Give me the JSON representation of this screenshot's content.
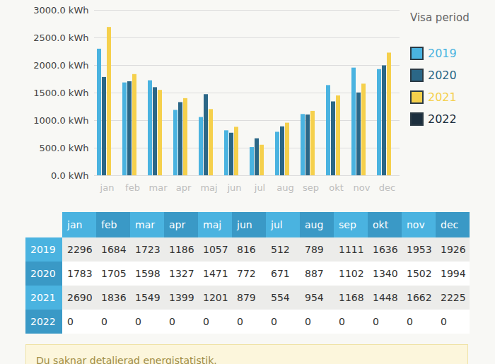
{
  "chart_data": {
    "type": "bar",
    "categories": [
      "jan",
      "feb",
      "mar",
      "apr",
      "maj",
      "jun",
      "jul",
      "aug",
      "sep",
      "okt",
      "nov",
      "dec"
    ],
    "series": [
      {
        "name": "2019",
        "color": "#4ab3e0",
        "values": [
          2296,
          1684,
          1723,
          1186,
          1057,
          816,
          512,
          789,
          1111,
          1636,
          1953,
          1926
        ]
      },
      {
        "name": "2020",
        "color": "#2b6787",
        "values": [
          1783,
          1705,
          1598,
          1327,
          1471,
          772,
          671,
          887,
          1102,
          1340,
          1502,
          1994
        ]
      },
      {
        "name": "2021",
        "color": "#f5d04c",
        "values": [
          2690,
          1836,
          1549,
          1399,
          1201,
          879,
          554,
          954,
          1168,
          1448,
          1662,
          2225
        ]
      },
      {
        "name": "2022",
        "color": "#1c2f3e",
        "values": [
          0,
          0,
          0,
          0,
          0,
          0,
          0,
          0,
          0,
          0,
          0,
          0
        ]
      }
    ],
    "ylim": [
      0,
      3000
    ],
    "yticks": [
      {
        "value": 0,
        "label": "0.0 kWh"
      },
      {
        "value": 500,
        "label": "500.0 kWh"
      },
      {
        "value": 1000,
        "label": "1000.0 kWh"
      },
      {
        "value": 1500,
        "label": "1500.0 kWh"
      },
      {
        "value": 2000,
        "label": "2000.0 kWh"
      },
      {
        "value": 2500,
        "label": "2500.0 kWh"
      },
      {
        "value": 3000,
        "label": "3000.0 kWh"
      }
    ],
    "grid": true,
    "legend": "right",
    "legend_title": "Visa period"
  },
  "notice": "Du saknar detaljerad energistatistik."
}
